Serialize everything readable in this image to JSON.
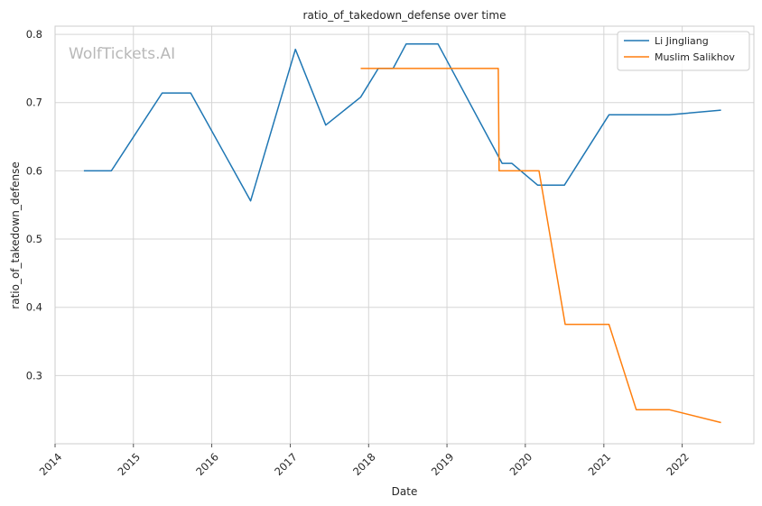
{
  "chart_data": {
    "type": "line",
    "title": "ratio_of_takedown_defense over time",
    "xlabel": "Date",
    "ylabel": "ratio_of_takedown_defense",
    "watermark": "WolfTickets.AI",
    "x_ticks": [
      "2014",
      "2015",
      "2016",
      "2017",
      "2018",
      "2019",
      "2020",
      "2021",
      "2022"
    ],
    "y_ticks": [
      "0.3",
      "0.4",
      "0.5",
      "0.6",
      "0.7",
      "0.8"
    ],
    "y_tick_values": [
      0.3,
      0.4,
      0.5,
      0.6,
      0.7,
      0.8
    ],
    "xlim": [
      "2014-01-01",
      "2022-12-01"
    ],
    "ylim": [
      0.2,
      0.812
    ],
    "grid": true,
    "legend_position": "top-right",
    "series": [
      {
        "name": "Li Jingliang",
        "color": "#1f77b4",
        "points": [
          [
            "2014-05-15",
            0.6
          ],
          [
            "2014-09-20",
            0.6
          ],
          [
            "2015-05-15",
            0.714
          ],
          [
            "2015-09-25",
            0.714
          ],
          [
            "2016-06-30",
            0.556
          ],
          [
            "2017-01-25",
            0.778
          ],
          [
            "2017-06-15",
            0.667
          ],
          [
            "2017-11-25",
            0.708
          ],
          [
            "2018-02-15",
            0.75
          ],
          [
            "2018-04-25",
            0.75
          ],
          [
            "2018-06-25",
            0.786
          ],
          [
            "2018-11-20",
            0.786
          ],
          [
            "2019-09-15",
            0.611
          ],
          [
            "2019-10-30",
            0.611
          ],
          [
            "2020-02-28",
            0.579
          ],
          [
            "2020-07-01",
            0.579
          ],
          [
            "2021-01-25",
            0.682
          ],
          [
            "2021-11-01",
            0.682
          ],
          [
            "2022-07-01",
            0.689
          ]
        ]
      },
      {
        "name": "Muslim Salikhov",
        "color": "#ff7f0e",
        "points": [
          [
            "2017-11-25",
            0.75
          ],
          [
            "2019-08-28",
            0.75
          ],
          [
            "2019-09-01",
            0.6
          ],
          [
            "2020-03-05",
            0.6
          ],
          [
            "2020-07-05",
            0.375
          ],
          [
            "2021-01-25",
            0.375
          ],
          [
            "2021-06-01",
            0.25
          ],
          [
            "2021-11-01",
            0.25
          ],
          [
            "2022-07-01",
            0.231
          ]
        ]
      }
    ]
  }
}
